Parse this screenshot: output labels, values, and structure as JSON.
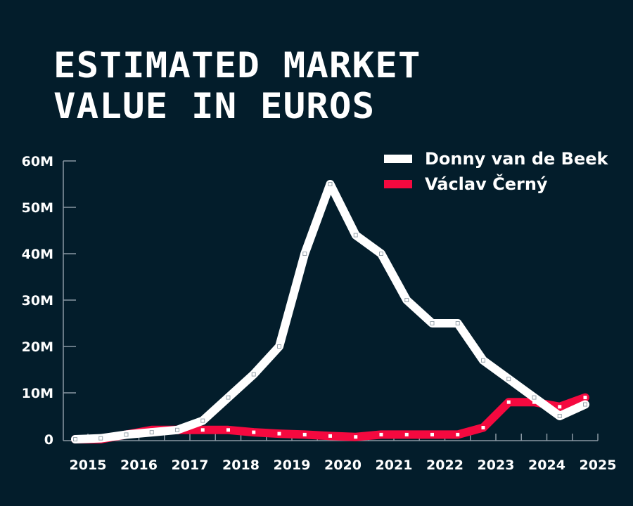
{
  "title_line1": "ESTIMATED MARKET",
  "title_line2": "VALUE IN EUROS",
  "colors": {
    "background": "#031d2b",
    "series1": "#ffffff",
    "series2": "#f5093f",
    "axis": "#8a98a3"
  },
  "legend": [
    {
      "label": "Donny van de Beek",
      "color": "#ffffff"
    },
    {
      "label": "Václav Černý",
      "color": "#f5093f"
    }
  ],
  "chart_data": {
    "type": "line",
    "title": "Estimated Market Value in Euros",
    "xlabel": "",
    "ylabel": "",
    "ylim": [
      0,
      60000000
    ],
    "y_ticks": [
      "0",
      "10M",
      "20M",
      "30M",
      "40M",
      "50M",
      "60M"
    ],
    "x_ticks": [
      "2015",
      "2016",
      "2017",
      "2018",
      "2019",
      "2020",
      "2021",
      "2022",
      "2023",
      "2024",
      "2025"
    ],
    "grid": false,
    "legend_position": "top-right",
    "x": [
      2015.0,
      2015.5,
      2016.0,
      2016.5,
      2017.0,
      2017.5,
      2018.0,
      2018.5,
      2019.0,
      2019.5,
      2020.0,
      2020.5,
      2021.0,
      2021.5,
      2022.0,
      2022.5,
      2023.0,
      2023.5,
      2024.0,
      2024.5,
      2025.0
    ],
    "series": [
      {
        "name": "Donny van de Beek",
        "color": "#ffffff",
        "values": [
          0,
          0.2,
          1,
          1.5,
          2,
          4,
          9,
          14,
          20,
          40,
          55,
          44,
          40,
          30,
          25,
          25,
          17,
          13,
          9,
          5,
          7.5
        ]
      },
      {
        "name": "Václav Černý",
        "color": "#f5093f",
        "values": [
          0,
          0,
          1,
          2,
          2,
          2,
          2,
          1.5,
          1.2,
          1,
          0.7,
          0.5,
          1,
          1,
          1,
          1,
          2.5,
          8,
          8,
          7,
          9
        ]
      }
    ],
    "units": "millions of euros"
  }
}
